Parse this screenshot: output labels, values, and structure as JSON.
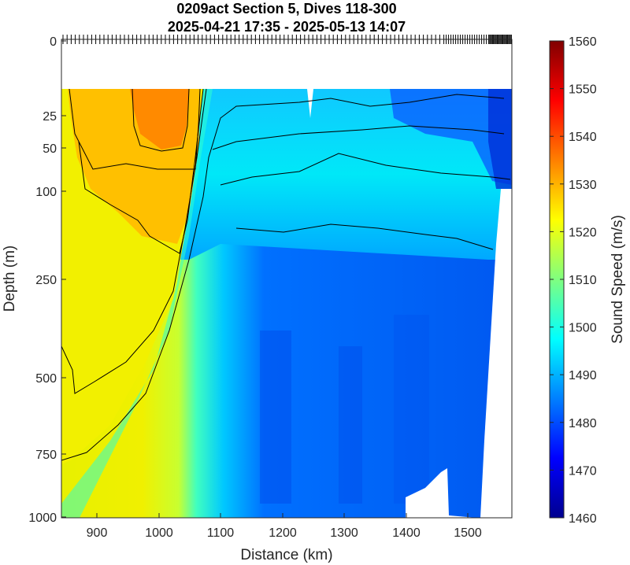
{
  "chart_data": {
    "type": "heatmap",
    "title_line1": "0209act Section 5, Dives 118-300",
    "title_line2": "2025-04-21 17:35 - 2025-05-13 14:07",
    "xlabel": "Distance (km)",
    "ylabel": "Depth (m)",
    "colorbar_label": "Sound Speed (m/s)",
    "xlim": [
      842,
      1570
    ],
    "x_ticks": [
      900,
      1000,
      1100,
      1200,
      1300,
      1400,
      1500
    ],
    "y_scale": "sqrt-like depth axis",
    "y_ticks": [
      0,
      25,
      50,
      100,
      250,
      500,
      750,
      1000
    ],
    "colorbar_range": [
      1460,
      1560
    ],
    "colorbar_ticks": [
      1460,
      1470,
      1480,
      1490,
      1500,
      1510,
      1520,
      1530,
      1540,
      1550,
      1560
    ],
    "colormap": "jet",
    "background": "#ffffff",
    "regions": [
      {
        "name": "warm core",
        "x_range": [
          950,
          1040
        ],
        "depth_range": [
          15,
          60
        ],
        "value": 1538
      },
      {
        "name": "warm water",
        "x_range": [
          842,
          1060
        ],
        "depth_range": [
          15,
          150
        ],
        "value": 1532
      },
      {
        "name": "warm deep",
        "x_range": [
          842,
          1010
        ],
        "depth_range": [
          150,
          500
        ],
        "value": 1524
      },
      {
        "name": "front",
        "x_range": [
          1060,
          1100
        ],
        "depth_range": [
          15,
          900
        ],
        "value": 1505
      },
      {
        "name": "upper layer",
        "x_range": [
          1100,
          1540
        ],
        "depth_range": [
          15,
          150
        ],
        "value": 1497
      },
      {
        "name": "deep layer",
        "x_range": [
          1100,
          1530
        ],
        "depth_range": [
          250,
          1000
        ],
        "value": 1483
      }
    ],
    "contours": [
      1500,
      1510,
      1520,
      1530,
      1540
    ]
  }
}
